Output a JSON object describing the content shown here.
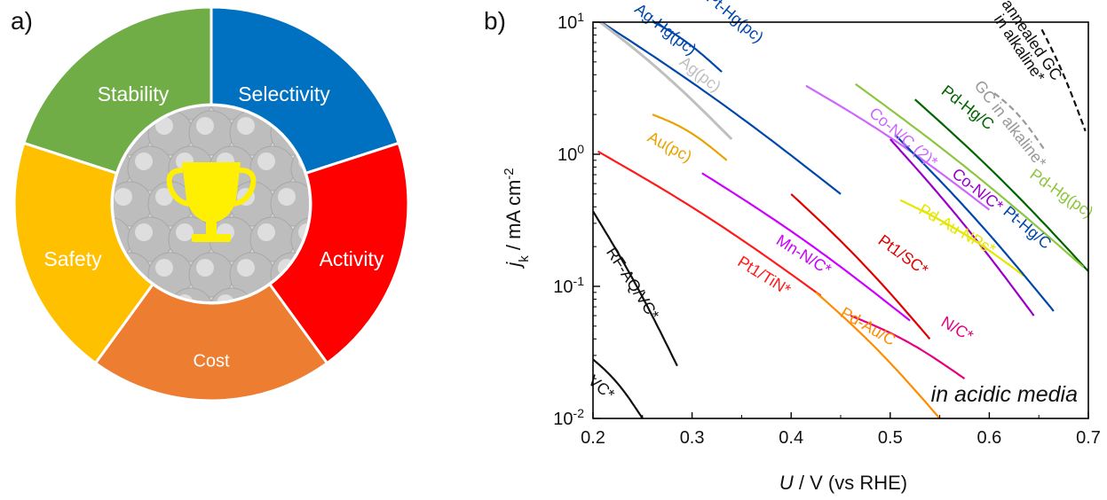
{
  "panels": {
    "a": "a)",
    "b": "b)"
  },
  "wheel": {
    "segments": [
      {
        "label": "Stability",
        "color": "#70AD47"
      },
      {
        "label": "Selectivity",
        "color": "#0070C0"
      },
      {
        "label": "Activity",
        "color": "#FF0000"
      },
      {
        "label": "Cost",
        "color": "#ED7D31"
      },
      {
        "label": "Safety",
        "color": "#FFC000"
      }
    ],
    "center_icon": "trophy-icon",
    "trophy_color": "#FFEF00"
  },
  "chart_data": {
    "type": "line",
    "xlabel": {
      "italic": "U",
      "rest": " / V (vs RHE)"
    },
    "ylabel": {
      "italic": "j",
      "sub": "k",
      "rest": " / mA cm",
      "sup": "-2"
    },
    "xlim": [
      0.2,
      0.7
    ],
    "ylim": [
      0.01,
      10
    ],
    "yscale": "log",
    "x_ticks": [
      "0.2",
      "0.3",
      "0.4",
      "0.5",
      "0.6",
      "0.7"
    ],
    "y_ticks": [
      {
        "base": "10",
        "exp": "-2"
      },
      {
        "base": "10",
        "exp": "-1"
      },
      {
        "base": "10",
        "exp": "0"
      },
      {
        "base": "10",
        "exp": "1"
      }
    ],
    "annotation": "in acidic media",
    "series": [
      {
        "name": "VC*",
        "color": "#111111",
        "x": [
          0.2,
          0.25
        ],
        "y": [
          0.028,
          0.01
        ]
      },
      {
        "name": "RF-AQ/VC*",
        "color": "#111111",
        "x": [
          0.2,
          0.285
        ],
        "y": [
          0.37,
          0.025
        ]
      },
      {
        "name": "Ag-Hg(pc)",
        "color": "#0047AB",
        "x": [
          0.2,
          0.45
        ],
        "y": [
          11,
          0.5
        ]
      },
      {
        "name": "Ag(pc)",
        "color": "#BFBFBF",
        "x": [
          0.2,
          0.34
        ],
        "y": [
          11,
          1.3
        ]
      },
      {
        "name": "Pt-Hg(pc)",
        "color": "#0047AB",
        "x": [
          0.25,
          0.33
        ],
        "y": [
          11,
          4.2
        ]
      },
      {
        "name": "Au(pc)",
        "color": "#E8A200",
        "x": [
          0.26,
          0.335
        ],
        "y": [
          2.0,
          0.9
        ]
      },
      {
        "name": "Pt1/TiN*",
        "color": "#FF1A1A",
        "x": [
          0.205,
          0.43
        ],
        "y": [
          1.05,
          0.085
        ]
      },
      {
        "name": "Mn-N/C*",
        "color": "#CC00FF",
        "x": [
          0.31,
          0.52
        ],
        "y": [
          0.72,
          0.055
        ]
      },
      {
        "name": "Pt1/SC*",
        "color": "#E00000",
        "x": [
          0.4,
          0.54
        ],
        "y": [
          0.5,
          0.04
        ]
      },
      {
        "name": "Pd-Au/C",
        "color": "#FF8C00",
        "x": [
          0.425,
          0.55
        ],
        "y": [
          0.09,
          0.01
        ]
      },
      {
        "name": "N/C*",
        "color": "#E6007E",
        "x": [
          0.46,
          0.575
        ],
        "y": [
          0.06,
          0.02
        ]
      },
      {
        "name": "Co-N/C (2)*",
        "color": "#CC66FF",
        "x": [
          0.415,
          0.6
        ],
        "y": [
          3.3,
          0.38
        ]
      },
      {
        "name": "Co-N/C*",
        "color": "#9900CC",
        "x": [
          0.5,
          0.645
        ],
        "y": [
          1.3,
          0.06
        ]
      },
      {
        "name": "Pd-Au NPs*",
        "color": "#E6E600",
        "x": [
          0.51,
          0.635
        ],
        "y": [
          0.45,
          0.12
        ]
      },
      {
        "name": "Pt-Hg/C",
        "color": "#0047AB",
        "x": [
          0.505,
          0.665
        ],
        "y": [
          1.4,
          0.065
        ]
      },
      {
        "name": "Pd-Hg/C",
        "color": "#006400",
        "x": [
          0.525,
          0.7
        ],
        "y": [
          2.6,
          0.13
        ]
      },
      {
        "name": "Pd-Hg(pc)",
        "color": "#8DC63F",
        "x": [
          0.465,
          0.695
        ],
        "y": [
          3.4,
          0.14
        ]
      },
      {
        "name": "GC in alkaline*",
        "color": "#999999",
        "x": [
          0.605,
          0.655
        ],
        "y": [
          2.9,
          1.1
        ]
      },
      {
        "name": "annealed GC in alkaline*",
        "color": "#111111",
        "x": [
          0.653,
          0.697
        ],
        "y": [
          8.8,
          1.5
        ]
      }
    ]
  }
}
